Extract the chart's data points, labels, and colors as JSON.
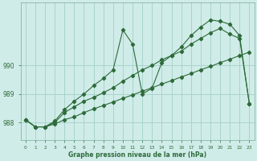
{
  "title": "Graphe pression niveau de la mer (hPa)",
  "background_color": "#d0ece8",
  "grid_color": "#a8d4cc",
  "line_color": "#2d6b3a",
  "xlim": [
    -0.5,
    23.5
  ],
  "ylim": [
    987.4,
    992.2
  ],
  "yticks": [
    988,
    989,
    990
  ],
  "ytick_labels": [
    "988",
    "989",
    "990"
  ],
  "xticks": [
    0,
    1,
    2,
    3,
    4,
    5,
    6,
    7,
    8,
    9,
    10,
    11,
    12,
    13,
    14,
    15,
    16,
    17,
    18,
    19,
    20,
    21,
    22,
    23
  ],
  "hours": [
    0,
    1,
    2,
    3,
    4,
    5,
    6,
    7,
    8,
    9,
    10,
    11,
    12,
    13,
    14,
    15,
    16,
    17,
    18,
    19,
    20,
    21,
    22,
    23
  ],
  "line_bottom": [
    988.1,
    987.85,
    987.85,
    987.95,
    988.1,
    988.2,
    988.35,
    988.48,
    988.6,
    988.72,
    988.85,
    988.97,
    989.1,
    989.22,
    989.35,
    989.47,
    989.6,
    989.72,
    989.85,
    989.97,
    990.1,
    990.22,
    990.35,
    990.47
  ],
  "line_mid": [
    988.1,
    987.85,
    987.85,
    988.0,
    988.35,
    988.55,
    988.75,
    988.88,
    989.05,
    989.22,
    989.45,
    989.65,
    989.85,
    990.0,
    990.2,
    990.35,
    990.5,
    990.75,
    990.95,
    991.15,
    991.3,
    991.1,
    990.95,
    988.65
  ],
  "line_top": [
    988.1,
    987.85,
    987.85,
    988.05,
    988.45,
    988.75,
    989.0,
    989.3,
    989.55,
    989.85,
    991.25,
    990.75,
    989.0,
    989.2,
    990.1,
    990.35,
    990.65,
    991.05,
    991.35,
    991.6,
    991.55,
    991.45,
    991.05,
    988.65
  ]
}
